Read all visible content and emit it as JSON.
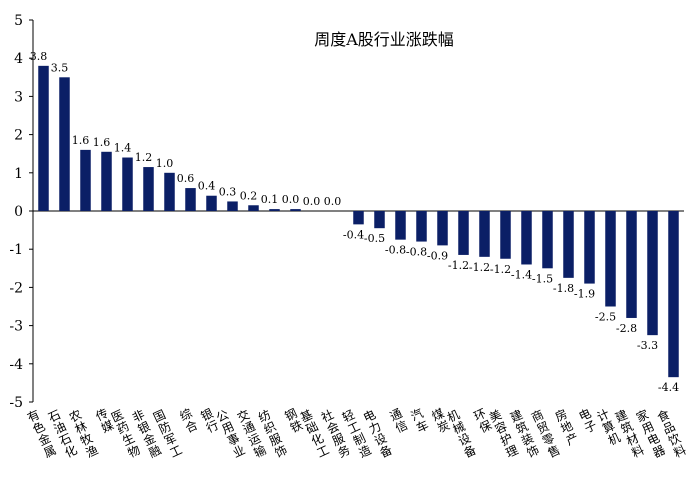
{
  "chart_data": {
    "type": "bar",
    "title": "周度A股行业涨跌幅",
    "xlabel": "",
    "ylabel": "",
    "ylim": [
      -5,
      5
    ],
    "yticks": [
      "5",
      "4",
      "3",
      "2",
      "1",
      "0",
      "-1",
      "-2",
      "-3",
      "-4",
      "-5"
    ],
    "bar_color": "#0b1f66",
    "grid": false,
    "legend": "none",
    "categories": [
      "有色金属",
      "石油石化",
      "农林牧渔",
      "传媒",
      "医药生物",
      "非银金融",
      "国防军工",
      "综合",
      "银行",
      "公用事业",
      "交通运输",
      "纺织服饰",
      "钢铁",
      "基础化工",
      "社会服务",
      "轻工制造",
      "电力设备",
      "通信",
      "汽车",
      "煤炭",
      "机械设备",
      "环保",
      "美容护理",
      "建筑装饰",
      "商贸零售",
      "房地产",
      "电子",
      "计算机",
      "建筑材料",
      "家用电器",
      "食品饮料"
    ],
    "values": [
      3.8,
      3.5,
      1.6,
      1.55,
      1.4,
      1.15,
      1.0,
      0.6,
      0.4,
      0.25,
      0.15,
      0.05,
      0.05,
      0.0,
      0.0,
      -0.35,
      -0.45,
      -0.75,
      -0.8,
      -0.9,
      -1.15,
      -1.2,
      -1.25,
      -1.4,
      -1.5,
      -1.75,
      -1.9,
      -2.5,
      -2.8,
      -3.25,
      -4.35
    ],
    "data_labels": [
      "3.8",
      "3.5",
      "1.6",
      "1.6",
      "1.4",
      "1.2",
      "1.0",
      "0.6",
      "0.4",
      "0.3",
      "0.2",
      "0.1",
      "0.0",
      "0.0",
      "0.0",
      "-0.4",
      "-0.5",
      "-0.8",
      "-0.8",
      "-0.9",
      "-1.2",
      "-1.2",
      "-1.2",
      "-1.4",
      "-1.5",
      "-1.8",
      "-1.9",
      "-2.5",
      "-2.8",
      "-3.3",
      "-4.4"
    ]
  }
}
